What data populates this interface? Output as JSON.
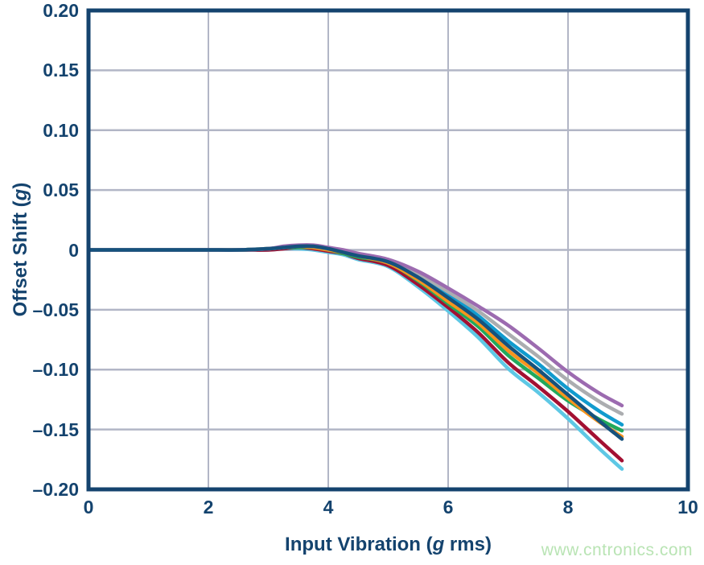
{
  "watermark": {
    "text": "www.cntronics.com",
    "color": "#b9e4b4"
  },
  "chart_data": {
    "type": "line",
    "title": "",
    "xlabel_pre": "Input Vibration (",
    "xlabel_italic": "g",
    "xlabel_post": " rms)",
    "ylabel_pre": "Offset Shift (",
    "ylabel_italic": "g",
    "ylabel_post": ")",
    "xlim": [
      0,
      10
    ],
    "ylim": [
      -0.2,
      0.2
    ],
    "grid": "on",
    "legend_position": "none",
    "grid_color": "#b2b6c6",
    "axis_color": "#14436e",
    "text_color": "#14436e",
    "x_tick_values": [
      0,
      2,
      4,
      6,
      8,
      10
    ],
    "x_tick_labels": [
      "0",
      "2",
      "4",
      "6",
      "8",
      "10"
    ],
    "y_tick_values": [
      0.2,
      0.15,
      0.1,
      0.05,
      0,
      -0.05,
      -0.1,
      -0.15,
      -0.2
    ],
    "y_tick_labels": [
      "0.20",
      "0.15",
      "0.10",
      "0.05",
      "0",
      "–0.05",
      "–0.10",
      "–0.15",
      "–0.20"
    ],
    "x_gridline_values": [
      2,
      4,
      6,
      8
    ],
    "y_gridline_values": [
      0.15,
      0.1,
      0.05,
      0,
      -0.05,
      -0.1,
      -0.15
    ],
    "x": [
      0,
      0.5,
      1,
      1.5,
      2,
      2.5,
      3,
      3.25,
      3.5,
      3.75,
      4,
      4.25,
      4.5,
      5,
      5.5,
      6,
      6.5,
      7,
      7.5,
      8,
      8.5,
      8.9
    ],
    "series": [
      {
        "name": "light-cyan-curve",
        "color": "#5ec8e5",
        "values": [
          0,
          0,
          0,
          0,
          0,
          0,
          0.0,
          0.001,
          0.001,
          0.0,
          -0.002,
          -0.004,
          -0.008,
          -0.014,
          -0.031,
          -0.051,
          -0.073,
          -0.099,
          -0.119,
          -0.141,
          -0.165,
          -0.183
        ]
      },
      {
        "name": "dark-red-curve",
        "color": "#a31032",
        "values": [
          0,
          0,
          0,
          0,
          0,
          0,
          0.0,
          0.001,
          0.002,
          0.001,
          -0.001,
          -0.003,
          -0.007,
          -0.013,
          -0.029,
          -0.048,
          -0.069,
          -0.094,
          -0.114,
          -0.135,
          -0.158,
          -0.176
        ]
      },
      {
        "name": "green-curve",
        "color": "#21a95c",
        "values": [
          0,
          0,
          0,
          0,
          0,
          0,
          0.001,
          0.002,
          0.002,
          0.002,
          0.0,
          -0.003,
          -0.006,
          -0.011,
          -0.026,
          -0.045,
          -0.064,
          -0.088,
          -0.107,
          -0.126,
          -0.141,
          -0.151
        ]
      },
      {
        "name": "orange-curve",
        "color": "#f7941e",
        "values": [
          0,
          0,
          0,
          0,
          0,
          0,
          0.001,
          0.002,
          0.003,
          0.002,
          0.0,
          -0.002,
          -0.005,
          -0.011,
          -0.025,
          -0.043,
          -0.061,
          -0.084,
          -0.103,
          -0.124,
          -0.143,
          -0.156
        ]
      },
      {
        "name": "cyan-curve",
        "color": "#119bce",
        "values": [
          0,
          0,
          0,
          0,
          0,
          0,
          0.001,
          0.002,
          0.003,
          0.003,
          0.001,
          -0.001,
          -0.004,
          -0.01,
          -0.021,
          -0.037,
          -0.055,
          -0.076,
          -0.095,
          -0.116,
          -0.134,
          -0.146
        ]
      },
      {
        "name": "gray-curve",
        "color": "#abadb0",
        "values": [
          0,
          0,
          0,
          0,
          0,
          0,
          0.001,
          0.002,
          0.003,
          0.003,
          0.001,
          -0.001,
          -0.004,
          -0.009,
          -0.02,
          -0.035,
          -0.051,
          -0.07,
          -0.089,
          -0.109,
          -0.126,
          -0.137
        ]
      },
      {
        "name": "purple-curve",
        "color": "#9c6bb0",
        "values": [
          0,
          0,
          0,
          0,
          0,
          0,
          0.001,
          0.003,
          0.004,
          0.004,
          0.002,
          0.0,
          -0.003,
          -0.008,
          -0.018,
          -0.032,
          -0.047,
          -0.063,
          -0.082,
          -0.102,
          -0.119,
          -0.13
        ]
      },
      {
        "name": "navy-curve",
        "color": "#16527d",
        "values": [
          0,
          0,
          0,
          0,
          0,
          0,
          0.001,
          0.002,
          0.003,
          0.003,
          0.001,
          -0.002,
          -0.005,
          -0.01,
          -0.023,
          -0.04,
          -0.058,
          -0.08,
          -0.1,
          -0.121,
          -0.142,
          -0.158
        ]
      }
    ]
  }
}
